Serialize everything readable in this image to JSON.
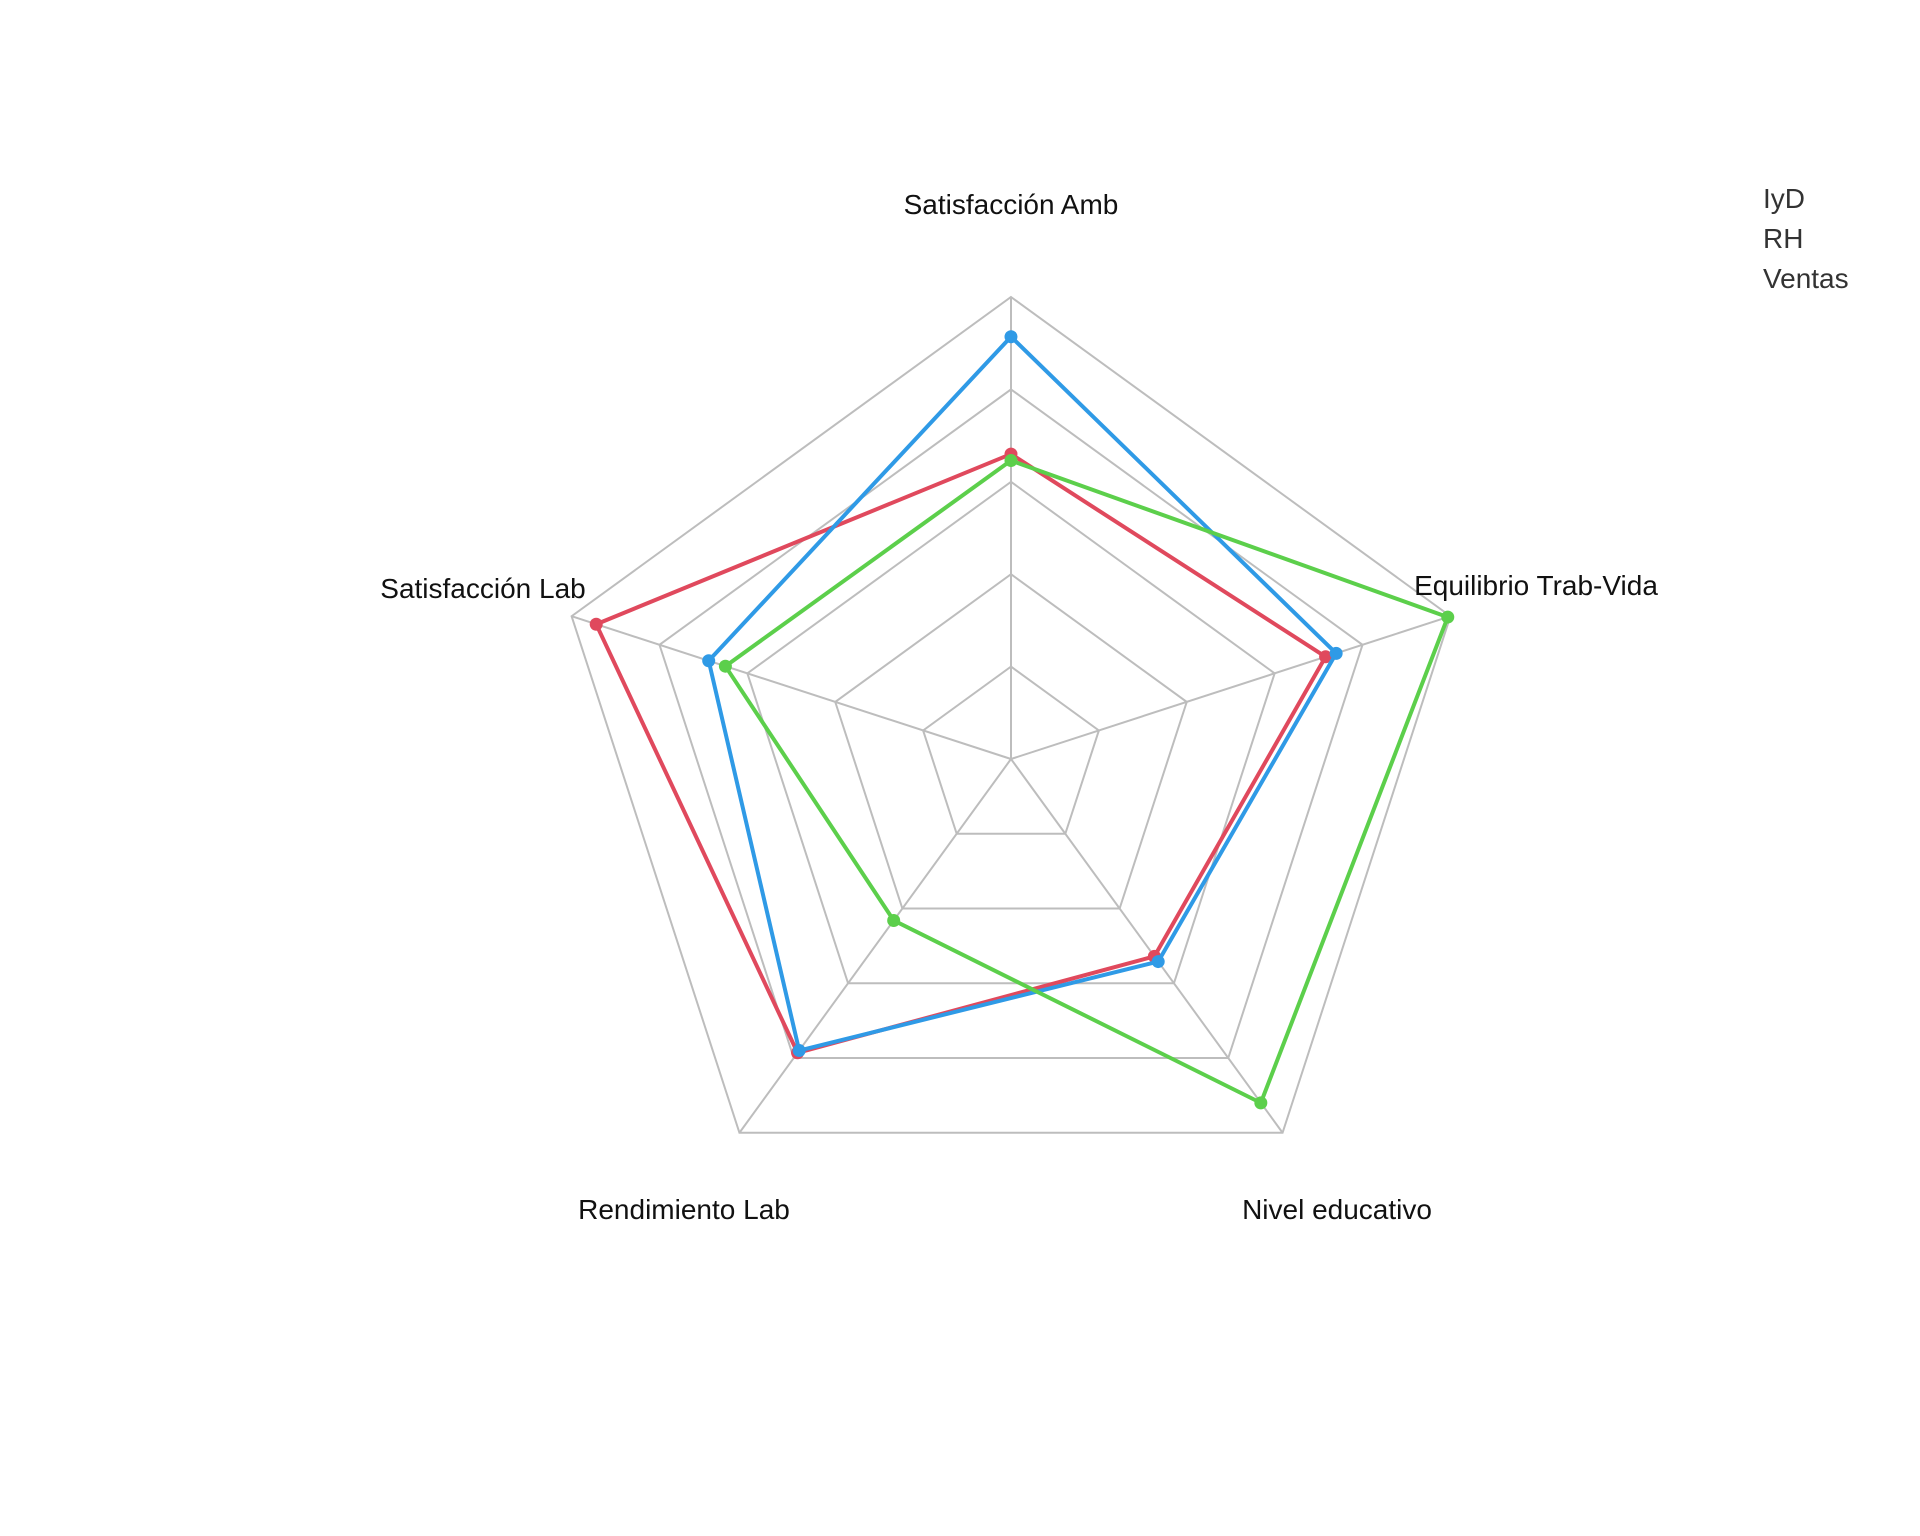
{
  "chart_data": {
    "type": "radar",
    "axes": [
      "Satisfacción Amb",
      "Equilibrio Trab-Vida",
      "Nivel educativo",
      "Rendimiento Lab",
      "Satisfacción Lab"
    ],
    "range": [
      0,
      5
    ],
    "rings": 5,
    "grid": true,
    "legend_placement": "top-right",
    "series": [
      {
        "name": "IyD",
        "color": "#e0495d",
        "values": [
          3.3,
          3.58,
          2.64,
          3.93,
          4.72
        ]
      },
      {
        "name": "RH",
        "color": "#2f9ae6",
        "values": [
          4.57,
          3.7,
          2.71,
          3.9,
          3.44
        ]
      },
      {
        "name": "Ventas",
        "color": "#5ccf4b",
        "values": [
          3.23,
          4.97,
          4.6,
          2.16,
          3.25
        ]
      }
    ]
  }
}
